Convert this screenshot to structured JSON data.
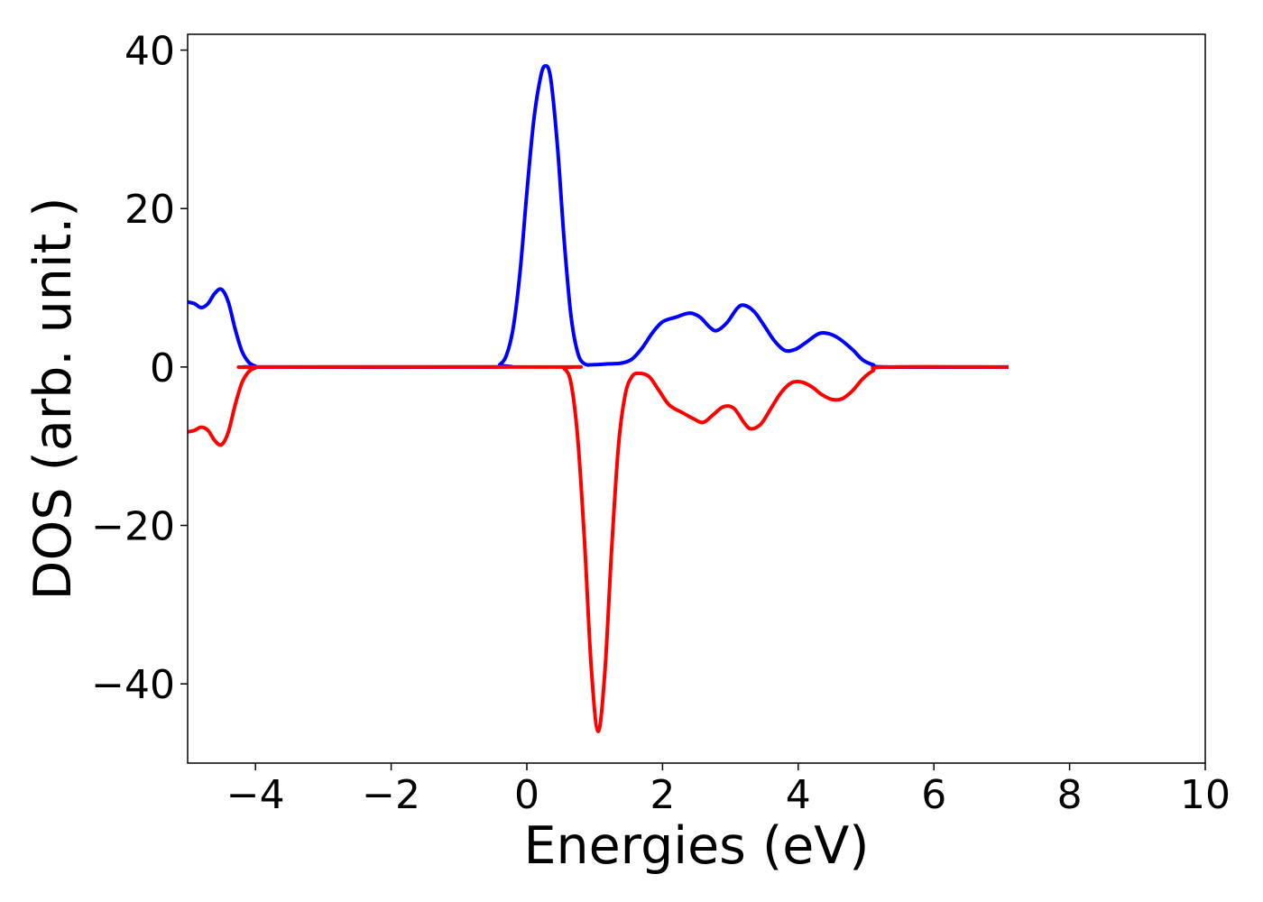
{
  "chart_data": {
    "type": "line",
    "title": "",
    "xlabel": "Energies (eV)",
    "ylabel": "DOS (arb. unit.)",
    "xlim": [
      -5,
      10
    ],
    "ylim": [
      -50,
      42
    ],
    "x_ticks": [
      -4,
      -2,
      0,
      2,
      4,
      6,
      8,
      10
    ],
    "x_tick_labels": [
      "−4",
      "−2",
      "0",
      "2",
      "4",
      "6",
      "8",
      "10"
    ],
    "y_ticks": [
      -40,
      -20,
      0,
      20,
      40
    ],
    "y_tick_labels": [
      "−40",
      "−20",
      "0",
      "20",
      "40"
    ],
    "grid": false,
    "legend": "none",
    "series": [
      {
        "color": "#0000ff",
        "points": [
          [
            -5.0,
            8.2
          ],
          [
            -4.9,
            8.0
          ],
          [
            -4.8,
            7.5
          ],
          [
            -4.7,
            8.0
          ],
          [
            -4.6,
            9.3
          ],
          [
            -4.5,
            9.8
          ],
          [
            -4.4,
            8.2
          ],
          [
            -4.3,
            4.8
          ],
          [
            -4.2,
            2.0
          ],
          [
            -4.1,
            0.6
          ],
          [
            -4.0,
            0.1
          ],
          [
            -3.9,
            0.0
          ],
          [
            -0.5,
            0.0
          ],
          [
            -0.4,
            0.3
          ],
          [
            -0.3,
            1.5
          ],
          [
            -0.2,
            5.0
          ],
          [
            -0.1,
            12.0
          ],
          [
            0.0,
            22.0
          ],
          [
            0.1,
            31.0
          ],
          [
            0.2,
            36.5
          ],
          [
            0.27,
            38.0
          ],
          [
            0.35,
            36.5
          ],
          [
            0.45,
            28.0
          ],
          [
            0.55,
            16.0
          ],
          [
            0.65,
            6.5
          ],
          [
            0.75,
            1.8
          ],
          [
            0.85,
            0.4
          ],
          [
            1.0,
            0.3
          ],
          [
            1.2,
            0.4
          ],
          [
            1.4,
            0.5
          ],
          [
            1.55,
            1.0
          ],
          [
            1.7,
            2.4
          ],
          [
            1.85,
            4.3
          ],
          [
            2.0,
            5.7
          ],
          [
            2.2,
            6.3
          ],
          [
            2.4,
            6.8
          ],
          [
            2.55,
            6.3
          ],
          [
            2.7,
            5.0
          ],
          [
            2.8,
            4.6
          ],
          [
            2.95,
            5.6
          ],
          [
            3.1,
            7.4
          ],
          [
            3.2,
            7.8
          ],
          [
            3.35,
            7.0
          ],
          [
            3.5,
            5.2
          ],
          [
            3.65,
            3.3
          ],
          [
            3.8,
            2.1
          ],
          [
            3.95,
            2.2
          ],
          [
            4.1,
            3.0
          ],
          [
            4.3,
            4.2
          ],
          [
            4.45,
            4.2
          ],
          [
            4.6,
            3.6
          ],
          [
            4.8,
            2.2
          ],
          [
            4.95,
            0.9
          ],
          [
            5.1,
            0.3
          ],
          [
            5.3,
            0.0
          ],
          [
            7.1,
            0.0
          ]
        ]
      },
      {
        "color": "#ff0000",
        "points": [
          [
            -5.0,
            -8.2
          ],
          [
            -4.9,
            -8.0
          ],
          [
            -4.8,
            -7.6
          ],
          [
            -4.7,
            -8.0
          ],
          [
            -4.6,
            -9.3
          ],
          [
            -4.5,
            -9.8
          ],
          [
            -4.4,
            -8.2
          ],
          [
            -4.3,
            -4.8
          ],
          [
            -4.2,
            -2.0
          ],
          [
            -4.1,
            -0.6
          ],
          [
            -4.0,
            -0.1
          ],
          [
            -3.9,
            0.0
          ],
          [
            0.45,
            0.0
          ],
          [
            0.55,
            -0.2
          ],
          [
            0.65,
            -2.0
          ],
          [
            0.75,
            -9.0
          ],
          [
            0.85,
            -22.0
          ],
          [
            0.95,
            -38.0
          ],
          [
            1.05,
            -46.0
          ],
          [
            1.15,
            -38.5
          ],
          [
            1.25,
            -23.0
          ],
          [
            1.35,
            -10.0
          ],
          [
            1.45,
            -3.5
          ],
          [
            1.55,
            -1.2
          ],
          [
            1.65,
            -0.8
          ],
          [
            1.8,
            -1.2
          ],
          [
            1.95,
            -3.0
          ],
          [
            2.1,
            -4.8
          ],
          [
            2.3,
            -5.8
          ],
          [
            2.45,
            -6.5
          ],
          [
            2.6,
            -7.0
          ],
          [
            2.75,
            -6.0
          ],
          [
            2.9,
            -5.0
          ],
          [
            3.05,
            -5.2
          ],
          [
            3.2,
            -7.0
          ],
          [
            3.3,
            -7.8
          ],
          [
            3.45,
            -7.2
          ],
          [
            3.6,
            -5.2
          ],
          [
            3.75,
            -3.2
          ],
          [
            3.9,
            -2.0
          ],
          [
            4.05,
            -1.9
          ],
          [
            4.2,
            -2.5
          ],
          [
            4.35,
            -3.5
          ],
          [
            4.5,
            -4.1
          ],
          [
            4.65,
            -4.0
          ],
          [
            4.8,
            -3.0
          ],
          [
            4.95,
            -1.5
          ],
          [
            5.1,
            -0.5
          ],
          [
            5.3,
            0.0
          ],
          [
            7.1,
            0.0
          ]
        ]
      }
    ]
  }
}
